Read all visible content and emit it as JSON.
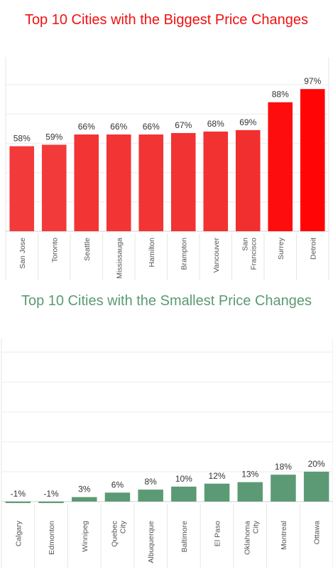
{
  "chart_data": [
    {
      "type": "bar",
      "title": "Top 10 Cities with the Biggest Price Changes",
      "categories": [
        "San Jose",
        "Toronto",
        "Seattle",
        "Mississauga",
        "Hamilton",
        "Brampton",
        "Vancouver",
        "San Francisco",
        "Surrey",
        "Detroit"
      ],
      "values": [
        58,
        59,
        66,
        66,
        66,
        67,
        68,
        69,
        88,
        97
      ],
      "labels": [
        "58%",
        "59%",
        "66%",
        "66%",
        "66%",
        "67%",
        "68%",
        "69%",
        "88%",
        "97%"
      ],
      "ylim": [
        0,
        100
      ],
      "grid": true,
      "colors": [
        "#f33a3a",
        "#f33a3a",
        "#f23434",
        "#f23434",
        "#f23434",
        "#f23333",
        "#f23131",
        "#f22f2f",
        "#fd0d0d",
        "#ff0505"
      ]
    },
    {
      "type": "bar",
      "title": "Top 10 Cities with the Smallest Price Changes",
      "categories": [
        "Calgary",
        "Edmonton",
        "Winnipeg",
        "Quebec City",
        "Albuquerque",
        "Baltimore",
        "El Paso",
        "Oklahoma City",
        "Montreal",
        "Ottawa"
      ],
      "values": [
        -1,
        -1,
        3,
        6,
        8,
        10,
        12,
        13,
        18,
        20
      ],
      "labels": [
        "-1%",
        "-1%",
        "3%",
        "6%",
        "8%",
        "10%",
        "12%",
        "13%",
        "18%",
        "20%"
      ],
      "ylim": [
        -2,
        100
      ],
      "grid": true,
      "colors": [
        "#5c9a75",
        "#5c9a75",
        "#5c9a75",
        "#5c9a75",
        "#5c9a75",
        "#5c9a75",
        "#5c9a75",
        "#5c9a75",
        "#5c9a75",
        "#5c9a75"
      ]
    }
  ]
}
